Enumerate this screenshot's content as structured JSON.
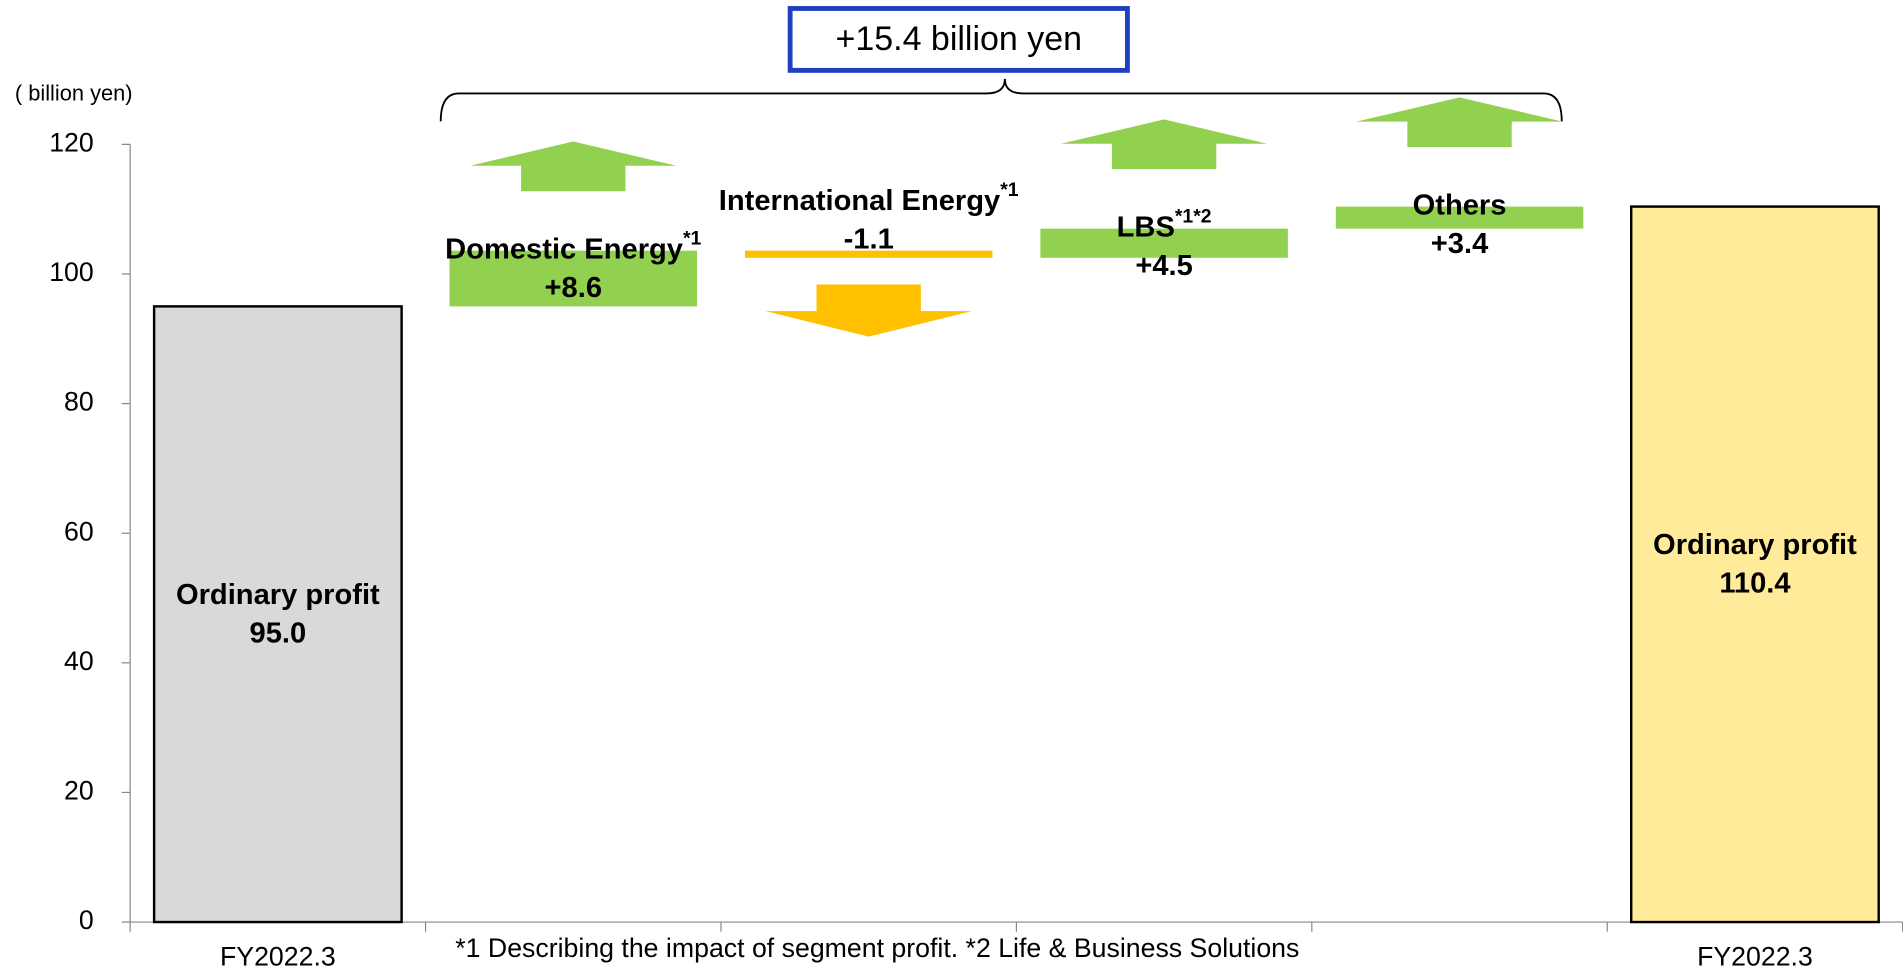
{
  "chart_data": {
    "type": "waterfall",
    "unit_label": "( billion yen)",
    "categories": [
      "FY2022.3",
      null,
      null,
      null,
      null,
      "FY2022.3"
    ],
    "bar_labels": [
      "Ordinary profit",
      "Domestic Energy",
      "International Energy",
      "LBS",
      "Others",
      "Ordinary profit"
    ],
    "label_notes": [
      null,
      "*1",
      "*1",
      "*1*2",
      null,
      null
    ],
    "measures": [
      "absolute",
      "relative",
      "relative",
      "relative",
      "relative",
      "total"
    ],
    "values": [
      95.0,
      8.6,
      -1.1,
      4.5,
      3.4,
      110.4
    ],
    "value_labels": [
      "95.0",
      "+8.6",
      "-1.1",
      "+4.5",
      "+3.4",
      "110.4"
    ],
    "colors": [
      "#d9d9d9",
      "#92d050",
      "#ffc000",
      "#92d050",
      "#92d050",
      "#ffeb99"
    ],
    "ylim": [
      0,
      120
    ],
    "yticks": [
      0,
      20,
      40,
      60,
      80,
      100,
      120
    ],
    "bracket_label": "+15.4 billion yen",
    "footnote": "*1 Describing the impact of segment profit.  *2 Life & Business Solutions"
  }
}
